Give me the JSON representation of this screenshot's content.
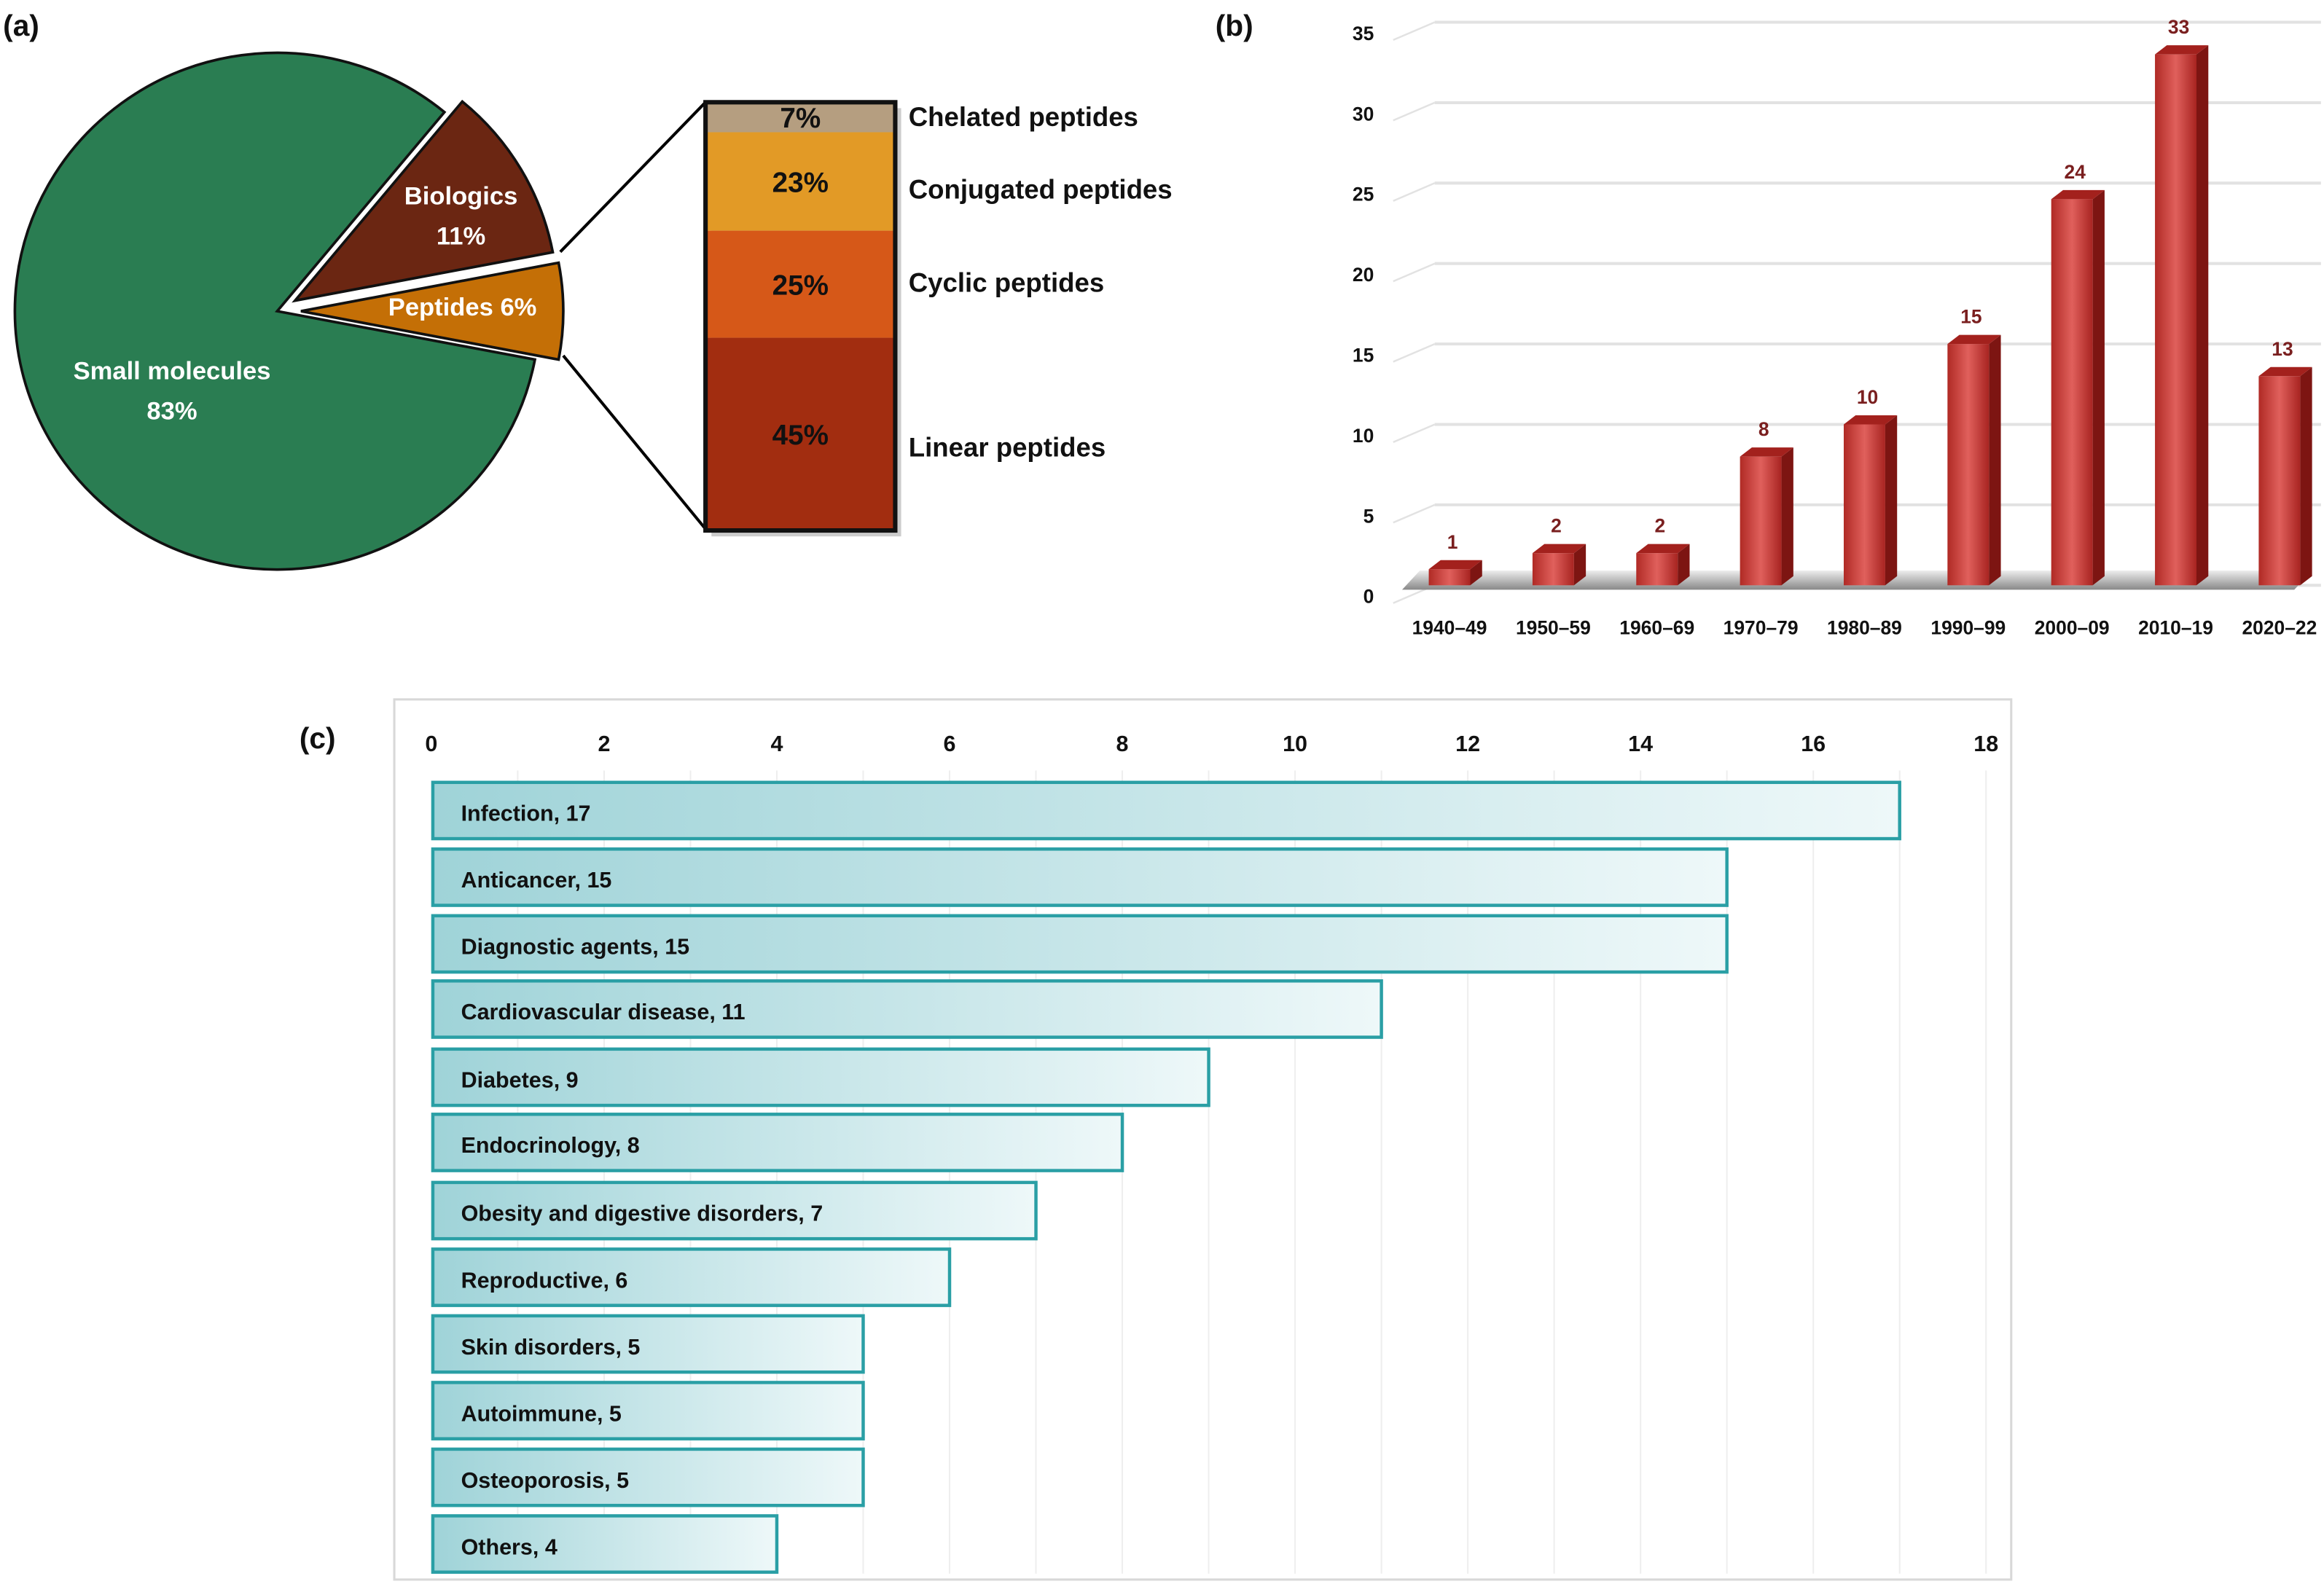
{
  "chart_data": [
    {
      "panel": "(a)",
      "type": "pie",
      "slices": [
        {
          "label": "Small molecules",
          "value": 83,
          "display": "83%",
          "color": "#2a7d52"
        },
        {
          "label": "Biologics",
          "value": 11,
          "display": "11%",
          "color": "#6b2612"
        },
        {
          "label": "Peptides",
          "value": 6,
          "display": "Peptides 6%",
          "color": "#c46f06"
        }
      ],
      "breakdown": {
        "type": "stacked-bar",
        "of": "Peptides",
        "segments": [
          {
            "label": "Chelated peptides",
            "value": 7,
            "display": "7%",
            "color": "#b59e80"
          },
          {
            "label": "Conjugated peptides",
            "value": 23,
            "display": "23%",
            "color": "#e29a26"
          },
          {
            "label": "Cyclic peptides",
            "value": 25,
            "display": "25%",
            "color": "#d65818"
          },
          {
            "label": "Linear peptides",
            "value": 45,
            "display": "45%",
            "color": "#a22d10"
          }
        ]
      }
    },
    {
      "panel": "(b)",
      "type": "bar",
      "style": "3d",
      "categories": [
        "1940–49",
        "1950–59",
        "1960–69",
        "1970–79",
        "1980–89",
        "1990–99",
        "2000–09",
        "2010–19",
        "2020–22"
      ],
      "values": [
        1,
        2,
        2,
        8,
        10,
        15,
        24,
        33,
        13
      ],
      "ylim": [
        0,
        35
      ],
      "yticks": [
        0,
        5,
        10,
        15,
        20,
        25,
        30,
        35
      ],
      "grid": true,
      "bar_color": "#c0392f",
      "label_color": "#7a1f1f"
    },
    {
      "panel": "(c)",
      "type": "bar",
      "orientation": "horizontal",
      "categories": [
        "Infection",
        "Anticancer",
        "Diagnostic agents",
        "Cardiovascular disease",
        "Diabetes",
        "Endocrinology",
        "Obesity and digestive disorders",
        "Reproductive",
        "Skin disorders",
        "Autoimmune",
        "Osteoporosis",
        "Others"
      ],
      "values": [
        17,
        15,
        15,
        11,
        9,
        8,
        7,
        6,
        5,
        5,
        5,
        4
      ],
      "xlim": [
        0,
        18
      ],
      "xticks": [
        0,
        2,
        4,
        6,
        8,
        10,
        12,
        14,
        16,
        18
      ],
      "xaxis_position": "top",
      "grid": true,
      "bar_color": "#9fd3d8",
      "border_color": "#2a9fa5"
    }
  ]
}
